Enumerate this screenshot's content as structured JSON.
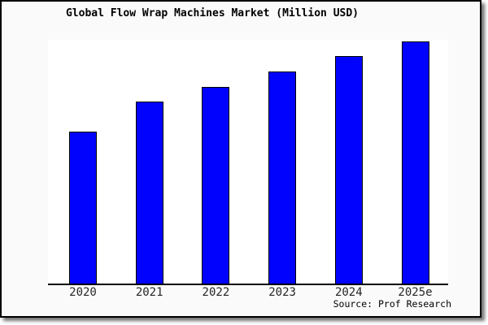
{
  "chart_data": {
    "type": "bar",
    "title": "Global Flow Wrap Machines Market (Million USD)",
    "categories": [
      "2020",
      "2021",
      "2022",
      "2023",
      "2024",
      "2025e"
    ],
    "values": [
      500,
      600,
      650,
      700,
      750,
      800
    ],
    "xlabel": "",
    "ylabel": "",
    "ylim": [
      0,
      804
    ],
    "grid": false,
    "legend": false,
    "y_axis_labels_shown": false,
    "source_label": "Source: Prof Research"
  },
  "colors": {
    "bar_fill": "#0101fe",
    "bar_edge": "#000003",
    "figure_background": "#fafafa",
    "plot_background": "#ffffff",
    "frame_border": "#000000",
    "tick_label": "#262626",
    "title_text": "#000000"
  }
}
